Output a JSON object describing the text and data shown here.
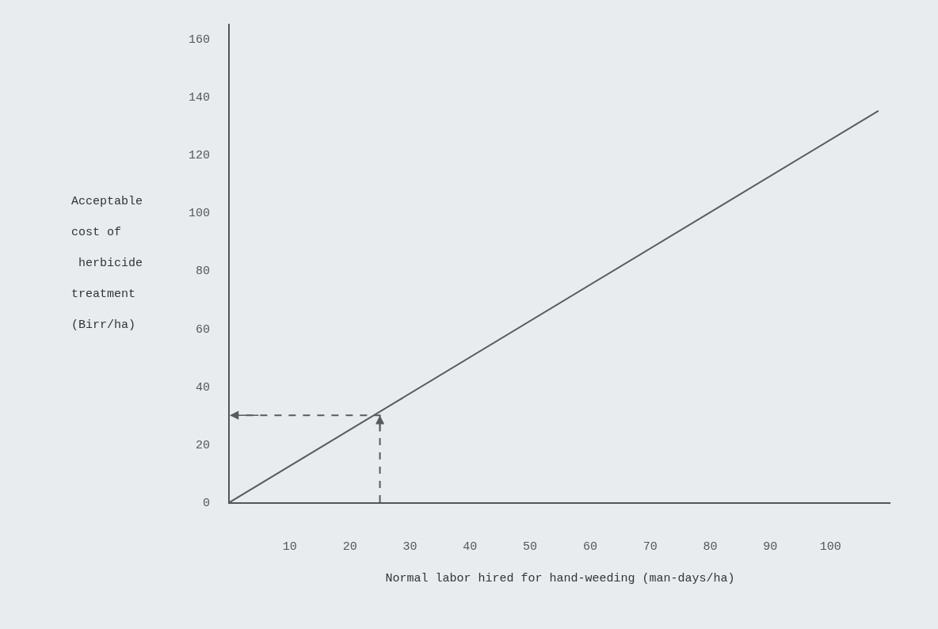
{
  "chart_data": {
    "type": "line",
    "xlabel": "Normal labor hired for hand-weeding (man-days/ha)",
    "ylabel": "Acceptable\ncost of\n herbicide\ntreatment\n(Birr/ha)",
    "series": [
      {
        "color": "#5a5a5a",
        "x": [
          0,
          108
        ],
        "values": [
          0,
          135
        ],
        "line_style": "solid"
      },
      {
        "color": "#5a5a5a",
        "x": [
          25,
          25,
          0
        ],
        "values": [
          0,
          30,
          30
        ],
        "line_style": "dashed"
      }
    ],
    "xlim": [
      0,
      110
    ],
    "xticks": [
      10,
      20,
      30,
      40,
      50,
      60,
      70,
      80,
      90,
      100
    ],
    "ylim": [
      0,
      165
    ],
    "yticks": [
      0,
      20,
      40,
      60,
      80,
      100,
      120,
      140,
      160
    ],
    "grid": false,
    "marker": "none"
  }
}
